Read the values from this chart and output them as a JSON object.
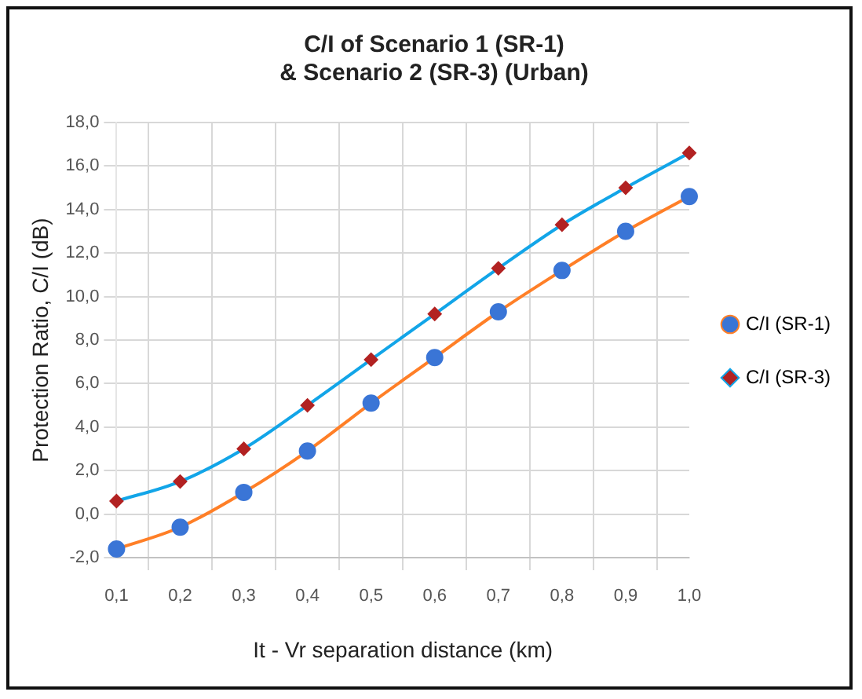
{
  "chart_data": {
    "type": "line",
    "title": [
      "C/I of Scenario 1 (SR-1)",
      "& Scenario 2 (SR-3) (Urban)"
    ],
    "xlabel": "It - Vr separation distance (km)",
    "ylabel": "Protection Ratio, C/I (dB)",
    "categories": [
      "0,1",
      "0,2",
      "0,3",
      "0,4",
      "0,5",
      "0,6",
      "0,7",
      "0,8",
      "0,9",
      "1,0"
    ],
    "series": [
      {
        "name": "C/I (SR-1)",
        "color": "#ff7f27",
        "colors": [
          "#3a75d6",
          "#3a75d6",
          "#3a75d6",
          "#3a75d6",
          "#3a75d6",
          "#3a75d6",
          "#3a75d6",
          "#3a75d6",
          "#3a75d6",
          "#3a75d6"
        ],
        "marker": "circle",
        "values": [
          -1.6,
          -0.6,
          1.0,
          2.9,
          5.1,
          7.2,
          9.3,
          11.2,
          13.0,
          14.6
        ]
      },
      {
        "name": "C/I (SR-3)",
        "color": "#12a5e8",
        "colors": [
          "#b22222",
          "#b22222",
          "#b22222",
          "#b22222",
          "#b22222",
          "#b22222",
          "#b22222",
          "#b22222",
          "#b22222",
          "#b22222"
        ],
        "marker": "diamond",
        "values": [
          0.6,
          1.5,
          3.0,
          5.0,
          7.1,
          9.2,
          11.3,
          13.3,
          15.0,
          16.6
        ]
      }
    ],
    "ylim": [
      -2,
      18
    ],
    "yticks": [
      {
        "value": -2,
        "label": "-2,0"
      },
      {
        "value": 0,
        "label": "0,0"
      },
      {
        "value": 2,
        "label": "2,0"
      },
      {
        "value": 4,
        "label": "4,0"
      },
      {
        "value": 6,
        "label": "6,0"
      },
      {
        "value": 8,
        "label": "8,0"
      },
      {
        "value": 10,
        "label": "10,0"
      },
      {
        "value": 12,
        "label": "12,0"
      },
      {
        "value": 14,
        "label": "14,0"
      },
      {
        "value": 16,
        "label": "16,0"
      },
      {
        "value": 18,
        "label": "18,0"
      }
    ],
    "grid": true,
    "legend": "right",
    "line_style": "solid"
  }
}
